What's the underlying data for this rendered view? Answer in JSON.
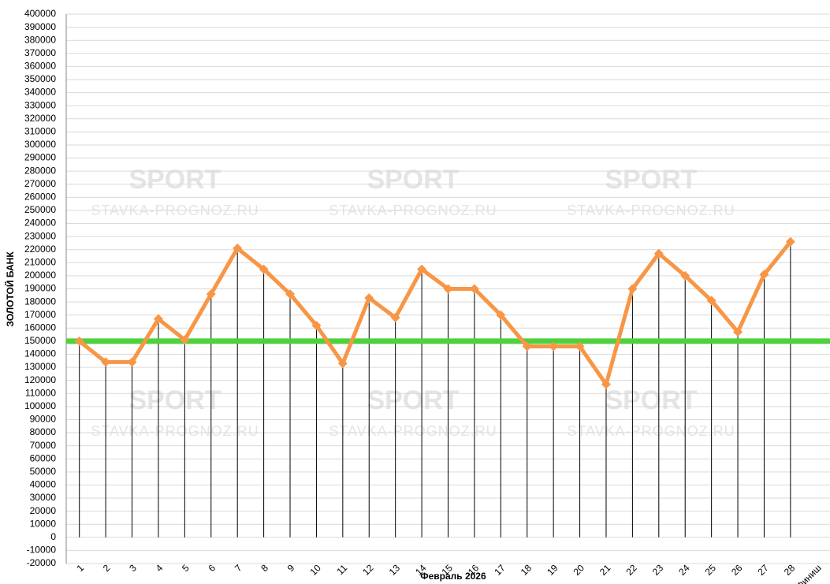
{
  "chart_data": {
    "type": "line",
    "x_label": "Февраль 2026",
    "y_label": "ЗОЛОТОЙ БАНК",
    "watermark": {
      "brand": "SPORT",
      "site": "STAVKA-PROGNOZ.RU"
    },
    "categories": [
      "1",
      "2",
      "3",
      "4",
      "5",
      "6",
      "7",
      "8",
      "9",
      "10",
      "11",
      "12",
      "13",
      "14",
      "15",
      "16",
      "17",
      "18",
      "19",
      "20",
      "21",
      "22",
      "23",
      "24",
      "25",
      "26",
      "27",
      "28",
      "Финиш"
    ],
    "series": [
      {
        "color": "#f79646",
        "values": [
          150000,
          134000,
          134000,
          167000,
          151000,
          186000,
          221000,
          205000,
          186000,
          162000,
          133000,
          183000,
          168000,
          205000,
          190000,
          190000,
          170000,
          146000,
          146000,
          146000,
          117000,
          190000,
          217000,
          200000,
          181000,
          157000,
          201000,
          226000,
          null
        ]
      }
    ],
    "reference_line": {
      "value": 150000,
      "color": "#4fd13d"
    },
    "drop_lines": true,
    "ylim": [
      -20000,
      400000
    ],
    "yticks": [
      -20000,
      -10000,
      0,
      10000,
      20000,
      30000,
      40000,
      50000,
      60000,
      70000,
      80000,
      90000,
      100000,
      110000,
      120000,
      130000,
      140000,
      150000,
      160000,
      170000,
      180000,
      190000,
      200000,
      210000,
      220000,
      230000,
      240000,
      250000,
      260000,
      270000,
      280000,
      290000,
      300000,
      310000,
      320000,
      330000,
      340000,
      350000,
      360000,
      370000,
      380000,
      390000,
      400000
    ],
    "grid": true
  }
}
